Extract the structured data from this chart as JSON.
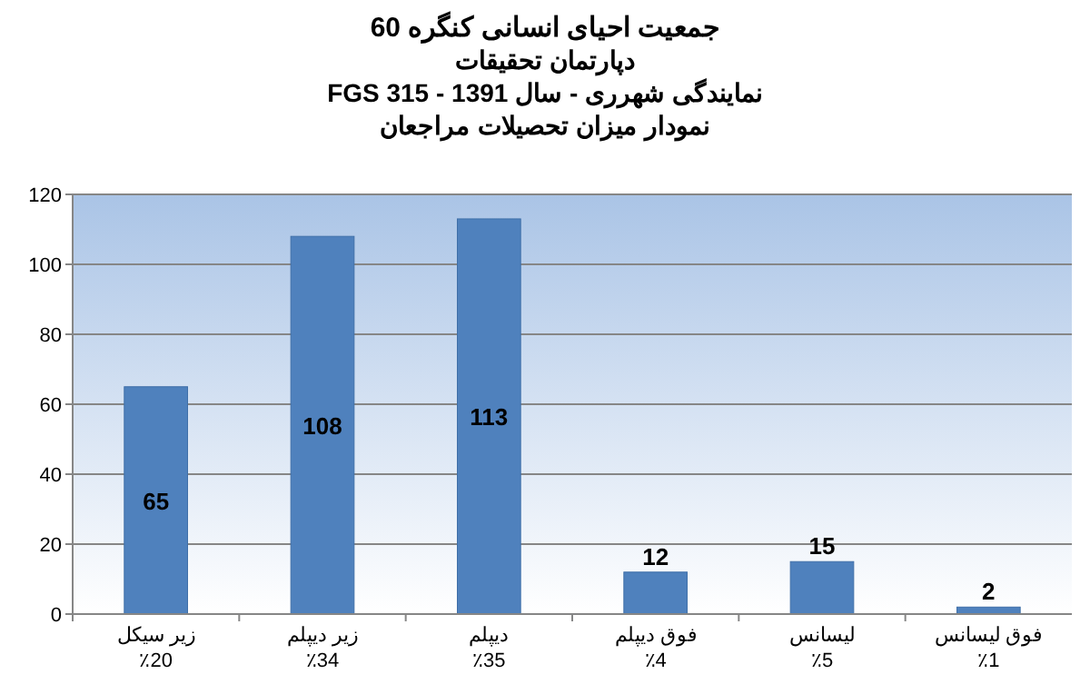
{
  "chart_data": {
    "type": "bar",
    "title": "جمعیت احیای انسانی کنگره 60",
    "subtitle": "دپارتمان تحقیقات\nنمایندگی شهرری - سال 1391 - FGS 315\nنمودار میزان تحصیلات مراجعان",
    "categories": [
      "زیر سیکل\n٪20",
      "زیر دیپلم\n٪34",
      "دیپلم\n٪35",
      "فوق دیپلم\n٪4",
      "لیسانس\n٪5",
      "فوق لیسانس\n٪1"
    ],
    "values": [
      65,
      108,
      113,
      12,
      15,
      2
    ],
    "color": "#4f81bd",
    "ylim": [
      0,
      120
    ],
    "yticks": [
      0,
      20,
      40,
      60,
      80,
      100,
      120
    ],
    "grid": "y",
    "data_labels": true
  }
}
